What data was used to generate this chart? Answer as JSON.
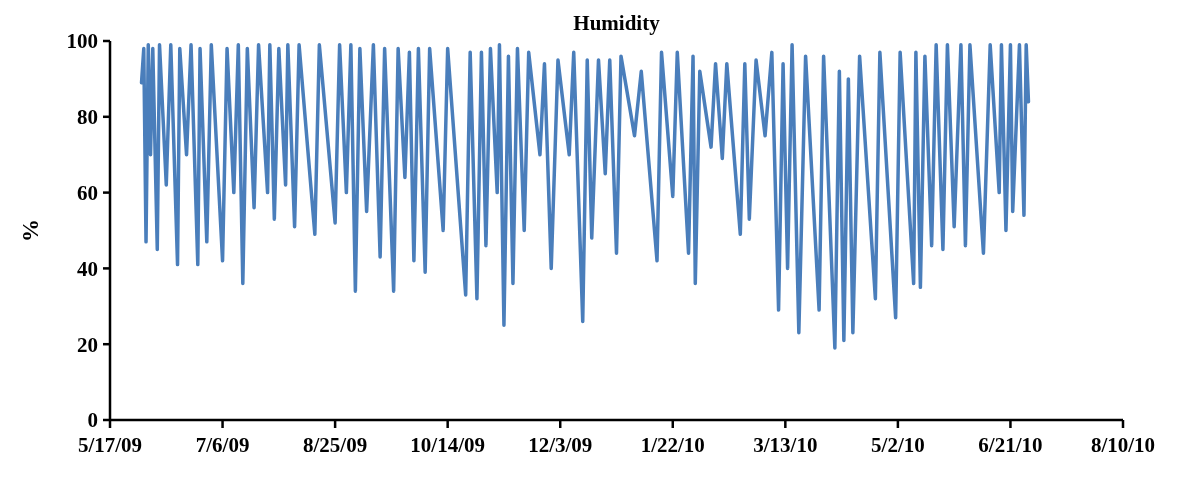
{
  "chart_data": {
    "type": "line",
    "title": "Humidity",
    "ylabel": "%",
    "ylim": [
      0,
      100
    ],
    "yticks": [
      0,
      20,
      40,
      60,
      80,
      100
    ],
    "xlim": [
      "2009-05-17",
      "2010-08-10"
    ],
    "xticks": [
      {
        "value": "2009-05-17",
        "label": "5/17/09"
      },
      {
        "value": "2009-07-06",
        "label": "7/6/09"
      },
      {
        "value": "2009-08-25",
        "label": "8/25/09"
      },
      {
        "value": "2009-10-14",
        "label": "10/14/09"
      },
      {
        "value": "2009-12-03",
        "label": "12/3/09"
      },
      {
        "value": "2010-01-22",
        "label": "1/22/10"
      },
      {
        "value": "2010-03-13",
        "label": "3/13/10"
      },
      {
        "value": "2010-05-02",
        "label": "5/2/10"
      },
      {
        "value": "2010-06-21",
        "label": "6/21/10"
      },
      {
        "value": "2010-08-10",
        "label": "8/10/10"
      }
    ],
    "grid": false,
    "marker": "none",
    "line_style": "solid",
    "x": [
      "2009-05-31",
      "2009-06-01",
      "2009-06-02",
      "2009-06-03",
      "2009-06-04",
      "2009-06-05",
      "2009-06-07",
      "2009-06-08",
      "2009-06-11",
      "2009-06-13",
      "2009-06-16",
      "2009-06-17",
      "2009-06-20",
      "2009-06-22",
      "2009-06-25",
      "2009-06-26",
      "2009-06-29",
      "2009-07-01",
      "2009-07-06",
      "2009-07-08",
      "2009-07-11",
      "2009-07-13",
      "2009-07-15",
      "2009-07-17",
      "2009-07-20",
      "2009-07-22",
      "2009-07-26",
      "2009-07-27",
      "2009-07-29",
      "2009-07-31",
      "2009-08-03",
      "2009-08-04",
      "2009-08-07",
      "2009-08-09",
      "2009-08-16",
      "2009-08-18",
      "2009-08-25",
      "2009-08-27",
      "2009-08-30",
      "2009-09-01",
      "2009-09-03",
      "2009-09-05",
      "2009-09-08",
      "2009-09-11",
      "2009-09-14",
      "2009-09-16",
      "2009-09-20",
      "2009-09-22",
      "2009-09-25",
      "2009-09-27",
      "2009-09-29",
      "2009-10-01",
      "2009-10-04",
      "2009-10-06",
      "2009-10-12",
      "2009-10-14",
      "2009-10-22",
      "2009-10-24",
      "2009-10-27",
      "2009-10-29",
      "2009-10-31",
      "2009-11-02",
      "2009-11-05",
      "2009-11-06",
      "2009-11-08",
      "2009-11-10",
      "2009-11-12",
      "2009-11-14",
      "2009-11-17",
      "2009-11-19",
      "2009-11-24",
      "2009-11-26",
      "2009-11-29",
      "2009-12-02",
      "2009-12-07",
      "2009-12-09",
      "2009-12-13",
      "2009-12-15",
      "2009-12-17",
      "2009-12-20",
      "2009-12-23",
      "2009-12-25",
      "2009-12-28",
      "2009-12-30",
      "2010-01-05",
      "2010-01-08",
      "2010-01-15",
      "2010-01-17",
      "2010-01-22",
      "2010-01-24",
      "2010-01-29",
      "2010-01-31",
      "2010-02-01",
      "2010-02-03",
      "2010-02-08",
      "2010-02-10",
      "2010-02-13",
      "2010-02-15",
      "2010-02-21",
      "2010-02-23",
      "2010-02-25",
      "2010-02-28",
      "2010-03-04",
      "2010-03-07",
      "2010-03-10",
      "2010-03-12",
      "2010-03-14",
      "2010-03-16",
      "2010-03-19",
      "2010-03-22",
      "2010-03-28",
      "2010-03-30",
      "2010-04-04",
      "2010-04-06",
      "2010-04-08",
      "2010-04-10",
      "2010-04-12",
      "2010-04-15",
      "2010-04-22",
      "2010-04-24",
      "2010-05-01",
      "2010-05-03",
      "2010-05-09",
      "2010-05-10",
      "2010-05-12",
      "2010-05-14",
      "2010-05-17",
      "2010-05-19",
      "2010-05-22",
      "2010-05-24",
      "2010-05-27",
      "2010-05-30",
      "2010-06-01",
      "2010-06-03",
      "2010-06-09",
      "2010-06-12",
      "2010-06-16",
      "2010-06-17",
      "2010-06-19",
      "2010-06-21",
      "2010-06-22",
      "2010-06-25",
      "2010-06-27",
      "2010-06-28",
      "2010-06-29"
    ],
    "series": [
      {
        "color": "#4a7ebb",
        "values": [
          89,
          98,
          47,
          99,
          70,
          98,
          45,
          99,
          62,
          99,
          41,
          98,
          70,
          99,
          41,
          98,
          47,
          99,
          42,
          98,
          60,
          99,
          36,
          98,
          56,
          99,
          60,
          99,
          53,
          98,
          62,
          99,
          51,
          99,
          49,
          99,
          52,
          99,
          60,
          99,
          34,
          98,
          55,
          99,
          43,
          98,
          34,
          98,
          64,
          97,
          42,
          98,
          39,
          98,
          50,
          98,
          33,
          97,
          32,
          97,
          46,
          98,
          60,
          99,
          25,
          96,
          36,
          98,
          50,
          97,
          70,
          94,
          40,
          95,
          70,
          97,
          26,
          95,
          48,
          95,
          65,
          95,
          44,
          96,
          75,
          92,
          42,
          97,
          59,
          97,
          44,
          96,
          36,
          92,
          72,
          94,
          69,
          94,
          49,
          94,
          53,
          95,
          75,
          97,
          29,
          94,
          40,
          99,
          23,
          96,
          29,
          96,
          19,
          92,
          21,
          90,
          23,
          96,
          32,
          97,
          27,
          97,
          36,
          97,
          35,
          96,
          46,
          99,
          45,
          99,
          51,
          99,
          46,
          99,
          44,
          99,
          60,
          99,
          50,
          99,
          55,
          99,
          54,
          99,
          84
        ]
      }
    ]
  }
}
